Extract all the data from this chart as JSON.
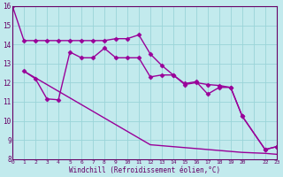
{
  "xlabel": "Windchill (Refroidissement éolien,°C)",
  "bg_color": "#c2eaed",
  "grid_color": "#9ad4d8",
  "line_color": "#990099",
  "ylim": [
    8,
    16
  ],
  "xlim": [
    0,
    23
  ],
  "yticks": [
    8,
    9,
    10,
    11,
    12,
    13,
    14,
    15,
    16
  ],
  "xtick_labels": [
    "0",
    "1",
    "2",
    "3",
    "4",
    "5",
    "6",
    "7",
    "8",
    "9",
    "10",
    "11",
    "12",
    "13",
    "14",
    "15",
    "16",
    "17",
    "18",
    "19",
    "20",
    "",
    "22",
    "23"
  ],
  "line1_x": [
    0,
    1,
    2,
    3,
    4,
    5,
    6,
    7,
    8,
    9,
    10,
    11,
    12,
    13,
    14,
    15,
    16,
    17,
    18,
    19,
    20,
    22,
    23
  ],
  "line1_y": [
    16.0,
    14.2,
    14.2,
    14.2,
    14.2,
    14.2,
    14.2,
    14.2,
    14.2,
    14.3,
    14.3,
    14.5,
    13.5,
    12.9,
    12.4,
    11.9,
    12.0,
    11.9,
    11.85,
    11.75,
    10.25,
    8.5,
    8.65
  ],
  "line2_x": [
    1,
    2,
    3,
    4,
    5,
    6,
    7,
    8,
    9,
    10,
    11,
    12,
    13,
    14,
    15,
    16,
    17,
    18,
    19,
    20,
    22,
    23
  ],
  "line2_y": [
    12.6,
    12.2,
    11.15,
    11.1,
    13.6,
    13.3,
    13.3,
    13.8,
    13.3,
    13.3,
    13.3,
    12.3,
    12.4,
    12.4,
    11.95,
    12.05,
    11.4,
    11.75,
    11.75,
    10.25,
    8.5,
    8.65
  ],
  "line3_x": [
    1,
    2,
    3,
    4,
    5,
    6,
    7,
    8,
    9,
    10,
    11,
    12,
    13,
    14,
    15,
    16,
    17,
    18,
    19,
    20,
    22,
    23
  ],
  "line3_y": [
    12.6,
    12.25,
    11.9,
    11.55,
    11.2,
    10.85,
    10.5,
    10.15,
    9.8,
    9.45,
    9.1,
    8.75,
    8.7,
    8.65,
    8.6,
    8.55,
    8.5,
    8.45,
    8.4,
    8.35,
    8.3,
    8.25
  ],
  "marker": "D",
  "markersize": 2.5,
  "linewidth": 1.0
}
